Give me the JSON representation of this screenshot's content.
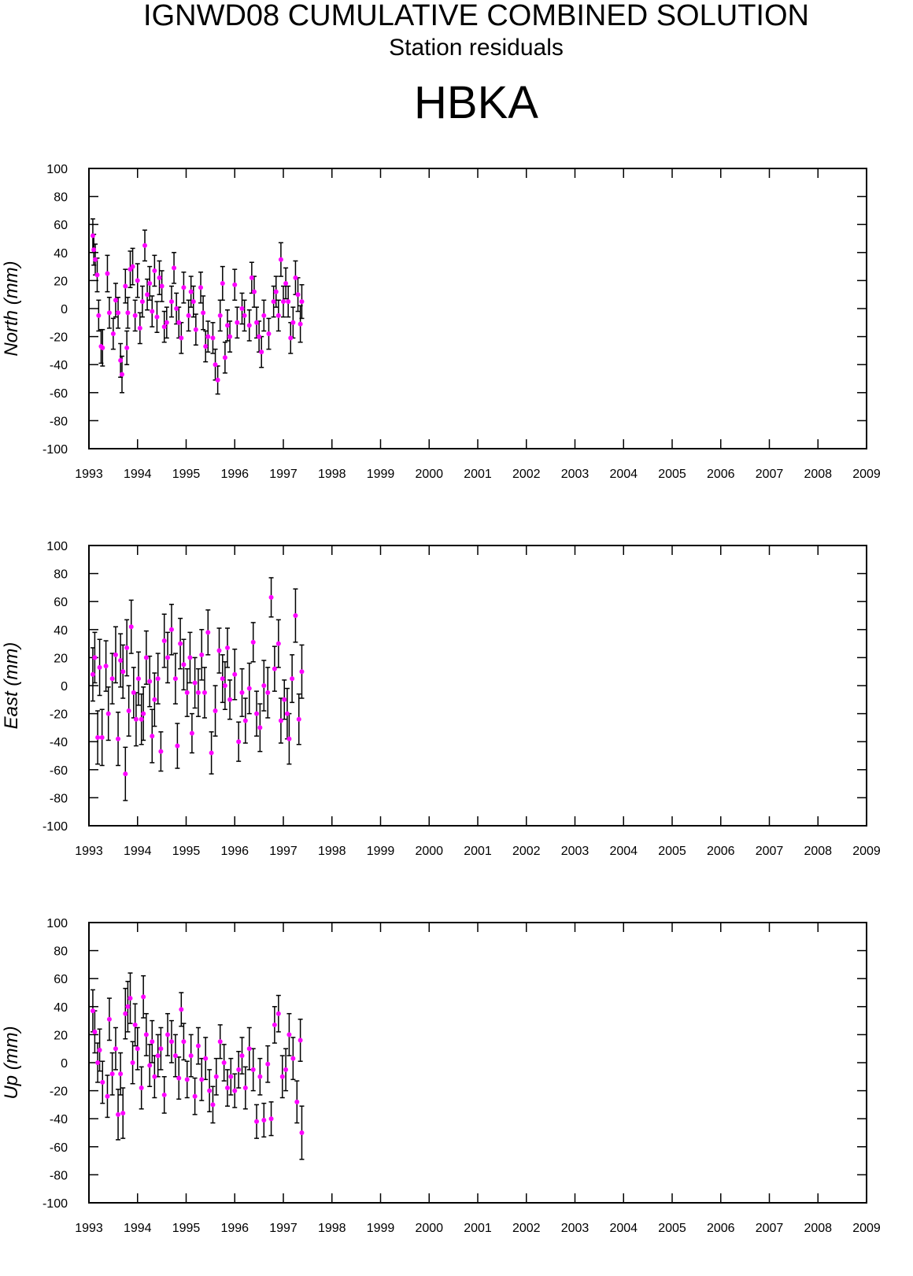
{
  "header": {
    "title": "IGNWD08 CUMULATIVE COMBINED SOLUTION",
    "subtitle": "Station residuals",
    "station": "HBKA"
  },
  "chart_data": [
    {
      "type": "scatter",
      "ylabel": "North (mm)",
      "color": "#ff00ff",
      "xlim": [
        1993,
        2009
      ],
      "ylim": [
        -100,
        100
      ],
      "xticks": [
        1993,
        1994,
        1995,
        1996,
        1997,
        1998,
        1999,
        2000,
        2001,
        2002,
        2003,
        2004,
        2005,
        2006,
        2007,
        2008,
        2009
      ],
      "yticks": [
        -100,
        -80,
        -60,
        -40,
        -20,
        0,
        20,
        40,
        60,
        80,
        100
      ],
      "x": [
        1993.08,
        1993.1,
        1993.13,
        1993.17,
        1993.2,
        1993.25,
        1993.28,
        1993.38,
        1993.42,
        1993.5,
        1993.55,
        1993.6,
        1993.65,
        1993.68,
        1993.75,
        1993.78,
        1993.8,
        1993.85,
        1993.9,
        1993.95,
        1994.0,
        1994.05,
        1994.1,
        1994.15,
        1994.2,
        1994.25,
        1994.3,
        1994.35,
        1994.4,
        1994.45,
        1994.5,
        1994.55,
        1994.6,
        1994.7,
        1994.75,
        1994.8,
        1994.85,
        1994.9,
        1994.95,
        1995.05,
        1995.1,
        1995.15,
        1995.2,
        1995.3,
        1995.35,
        1995.4,
        1995.45,
        1995.55,
        1995.6,
        1995.65,
        1995.7,
        1995.75,
        1995.8,
        1995.85,
        1995.9,
        1996.0,
        1996.05,
        1996.15,
        1996.2,
        1996.3,
        1996.35,
        1996.4,
        1996.45,
        1996.5,
        1996.55,
        1996.6,
        1996.7,
        1996.8,
        1996.85,
        1996.9,
        1996.95,
        1997.0,
        1997.05,
        1997.1,
        1997.15,
        1997.2,
        1997.25,
        1997.3,
        1997.35,
        1997.38
      ],
      "values": [
        52,
        42,
        35,
        24,
        -5,
        -27,
        -28,
        25,
        -3,
        -18,
        6,
        -3,
        -37,
        -47,
        16,
        -28,
        -3,
        28,
        30,
        -5,
        20,
        -14,
        5,
        45,
        10,
        18,
        -2,
        27,
        -6,
        22,
        16,
        -13,
        -10,
        5,
        29,
        0,
        -10,
        -21,
        15,
        -5,
        12,
        5,
        -15,
        15,
        -3,
        -27,
        -20,
        -21,
        -40,
        -51,
        -5,
        18,
        -35,
        -12,
        -20,
        17,
        -10,
        0,
        -5,
        -12,
        22,
        12,
        -10,
        -20,
        -31,
        -5,
        -18,
        5,
        12,
        -5,
        35,
        5,
        18,
        5,
        -21,
        -10,
        22,
        10,
        -11,
        5
      ],
      "errors": [
        12,
        11,
        11,
        12,
        11,
        12,
        13,
        13,
        11,
        11,
        12,
        11,
        12,
        13,
        12,
        12,
        11,
        13,
        13,
        11,
        12,
        11,
        11,
        11,
        11,
        12,
        11,
        11,
        11,
        12,
        11,
        11,
        11,
        11,
        11,
        11,
        11,
        11,
        11,
        11,
        11,
        11,
        11,
        11,
        12,
        11,
        11,
        11,
        11,
        10,
        11,
        12,
        11,
        11,
        11,
        11,
        11,
        11,
        11,
        11,
        11,
        11,
        11,
        11,
        11,
        11,
        11,
        11,
        11,
        11,
        12,
        11,
        11,
        11,
        11,
        11,
        12,
        12,
        13,
        12
      ]
    },
    {
      "type": "scatter",
      "ylabel": "East (mm)",
      "color": "#ff00ff",
      "xlim": [
        1993,
        2009
      ],
      "ylim": [
        -100,
        100
      ],
      "xticks": [
        1993,
        1994,
        1995,
        1996,
        1997,
        1998,
        1999,
        2000,
        2001,
        2002,
        2003,
        2004,
        2005,
        2006,
        2007,
        2008,
        2009
      ],
      "yticks": [
        -100,
        -80,
        -60,
        -40,
        -20,
        0,
        20,
        40,
        60,
        80,
        100
      ],
      "x": [
        1993.08,
        1993.12,
        1993.18,
        1993.22,
        1993.27,
        1993.35,
        1993.4,
        1993.48,
        1993.55,
        1993.6,
        1993.65,
        1993.7,
        1993.75,
        1993.78,
        1993.82,
        1993.87,
        1993.92,
        1993.97,
        1994.02,
        1994.08,
        1994.12,
        1994.18,
        1994.25,
        1994.3,
        1994.35,
        1994.42,
        1994.48,
        1994.55,
        1994.62,
        1994.7,
        1994.78,
        1994.82,
        1994.88,
        1994.95,
        1995.02,
        1995.08,
        1995.12,
        1995.18,
        1995.25,
        1995.32,
        1995.38,
        1995.45,
        1995.52,
        1995.6,
        1995.68,
        1995.75,
        1995.8,
        1995.85,
        1995.9,
        1996.0,
        1996.08,
        1996.15,
        1996.22,
        1996.3,
        1996.38,
        1996.45,
        1996.52,
        1996.6,
        1996.68,
        1996.75,
        1996.82,
        1996.9,
        1996.95,
        1997.02,
        1997.08,
        1997.12,
        1997.18,
        1997.25,
        1997.32,
        1997.38
      ],
      "values": [
        8,
        20,
        -37,
        13,
        -37,
        14,
        -20,
        5,
        22,
        -38,
        18,
        10,
        -63,
        27,
        -18,
        42,
        -5,
        -24,
        5,
        -24,
        -20,
        20,
        3,
        -36,
        -10,
        5,
        -47,
        32,
        20,
        40,
        5,
        -43,
        30,
        15,
        -5,
        20,
        -34,
        2,
        -5,
        22,
        -5,
        38,
        -48,
        -18,
        25,
        5,
        0,
        27,
        -10,
        8,
        -40,
        -5,
        -25,
        -2,
        31,
        -20,
        -30,
        0,
        -5,
        63,
        12,
        30,
        -25,
        -10,
        -20,
        -38,
        5,
        50,
        -24,
        10
      ],
      "errors": [
        19,
        18,
        19,
        20,
        20,
        18,
        19,
        18,
        20,
        19,
        19,
        19,
        19,
        20,
        18,
        19,
        18,
        19,
        19,
        18,
        19,
        19,
        18,
        19,
        19,
        18,
        14,
        19,
        18,
        18,
        18,
        16,
        18,
        18,
        17,
        18,
        14,
        18,
        17,
        18,
        18,
        16,
        15,
        18,
        16,
        17,
        17,
        14,
        14,
        18,
        14,
        17,
        16,
        18,
        14,
        16,
        17,
        18,
        18,
        14,
        16,
        17,
        16,
        14,
        18,
        18,
        17,
        19,
        18,
        19
      ]
    },
    {
      "type": "scatter",
      "ylabel": "Up (mm)",
      "color": "#ff00ff",
      "xlim": [
        1993,
        2009
      ],
      "ylim": [
        -100,
        100
      ],
      "xticks": [
        1993,
        1994,
        1995,
        1996,
        1997,
        1998,
        1999,
        2000,
        2001,
        2002,
        2003,
        2004,
        2005,
        2006,
        2007,
        2008,
        2009
      ],
      "yticks": [
        -100,
        -80,
        -60,
        -40,
        -20,
        0,
        20,
        40,
        60,
        80,
        100
      ],
      "x": [
        1993.08,
        1993.12,
        1993.18,
        1993.22,
        1993.28,
        1993.38,
        1993.42,
        1993.48,
        1993.55,
        1993.6,
        1993.65,
        1993.7,
        1993.75,
        1993.8,
        1993.85,
        1993.9,
        1993.95,
        1994.0,
        1994.08,
        1994.12,
        1994.18,
        1994.25,
        1994.3,
        1994.35,
        1994.42,
        1994.48,
        1994.55,
        1994.62,
        1994.7,
        1994.78,
        1994.85,
        1994.9,
        1994.95,
        1995.02,
        1995.1,
        1995.18,
        1995.25,
        1995.32,
        1995.4,
        1995.48,
        1995.55,
        1995.62,
        1995.7,
        1995.78,
        1995.85,
        1995.92,
        1996.0,
        1996.08,
        1996.15,
        1996.22,
        1996.3,
        1996.38,
        1996.45,
        1996.52,
        1996.6,
        1996.68,
        1996.75,
        1996.82,
        1996.9,
        1996.98,
        1997.05,
        1997.12,
        1997.2,
        1997.28,
        1997.35,
        1997.38
      ],
      "values": [
        37,
        22,
        0,
        9,
        -14,
        -24,
        31,
        -8,
        10,
        -37,
        -8,
        -36,
        35,
        40,
        46,
        0,
        27,
        10,
        -18,
        47,
        20,
        -2,
        15,
        -10,
        5,
        10,
        -23,
        20,
        15,
        5,
        -11,
        38,
        15,
        -12,
        5,
        -24,
        12,
        -12,
        3,
        -20,
        -30,
        -10,
        15,
        0,
        -18,
        -10,
        -20,
        -5,
        5,
        -18,
        10,
        -5,
        -42,
        -10,
        -41,
        -1,
        -40,
        27,
        35,
        -10,
        -5,
        20,
        3,
        -28,
        16,
        -50
      ],
      "errors": [
        15,
        15,
        14,
        15,
        15,
        15,
        15,
        15,
        15,
        18,
        15,
        18,
        18,
        18,
        18,
        15,
        15,
        15,
        15,
        15,
        15,
        15,
        15,
        15,
        15,
        15,
        13,
        15,
        15,
        15,
        15,
        12,
        13,
        13,
        15,
        13,
        13,
        15,
        15,
        15,
        13,
        13,
        12,
        13,
        13,
        13,
        12,
        13,
        13,
        15,
        15,
        15,
        12,
        13,
        12,
        13,
        12,
        13,
        13,
        15,
        15,
        15,
        15,
        15,
        15,
        19
      ]
    }
  ]
}
